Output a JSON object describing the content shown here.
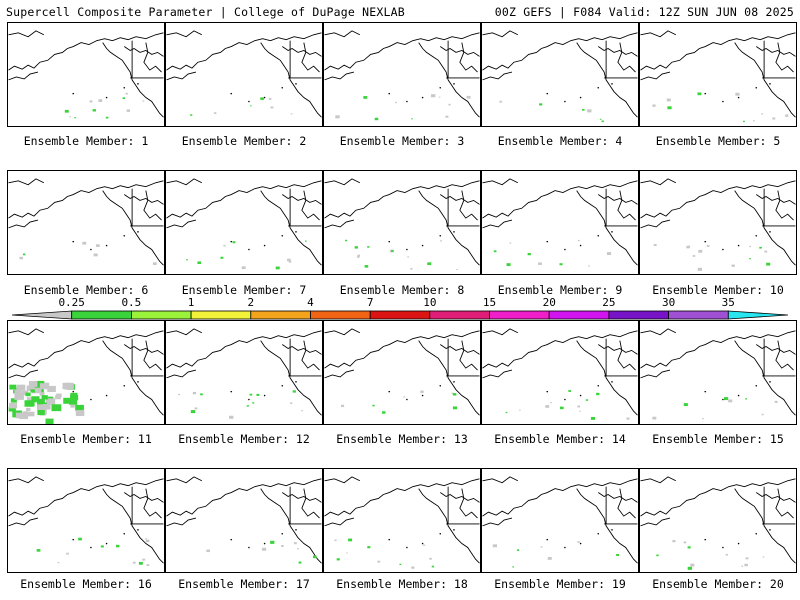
{
  "header": {
    "left": "Supercell Composite Parameter | College of DuPage NEXLAB",
    "right": "00Z GEFS | F084 Valid: 12Z SUN JUN 08 2025"
  },
  "legend": {
    "ticks": [
      "0.25",
      "0.5",
      "1",
      "2",
      "4",
      "7",
      "10",
      "15",
      "20",
      "25",
      "30",
      "35"
    ],
    "colors": [
      "#c8c8c8",
      "#3ad43a",
      "#9bf23a",
      "#f2f23a",
      "#f4a41c",
      "#f06414",
      "#dc1414",
      "#e01e78",
      "#f01ec8",
      "#d214f0",
      "#7814c8",
      "#a050d2",
      "#28e6f0"
    ]
  },
  "members": [
    {
      "label": "Ensemble Member: 1"
    },
    {
      "label": "Ensemble Member: 2"
    },
    {
      "label": "Ensemble Member: 3"
    },
    {
      "label": "Ensemble Member: 4"
    },
    {
      "label": "Ensemble Member: 5"
    },
    {
      "label": "Ensemble Member: 6"
    },
    {
      "label": "Ensemble Member: 7"
    },
    {
      "label": "Ensemble Member: 8"
    },
    {
      "label": "Ensemble Member: 9"
    },
    {
      "label": "Ensemble Member: 10"
    },
    {
      "label": "Ensemble Member: 11"
    },
    {
      "label": "Ensemble Member: 12"
    },
    {
      "label": "Ensemble Member: 13"
    },
    {
      "label": "Ensemble Member: 14"
    },
    {
      "label": "Ensemble Member: 15"
    },
    {
      "label": "Ensemble Member: 16"
    },
    {
      "label": "Ensemble Member: 17"
    },
    {
      "label": "Ensemble Member: 18"
    },
    {
      "label": "Ensemble Member: 19"
    },
    {
      "label": "Ensemble Member: 20"
    }
  ]
}
